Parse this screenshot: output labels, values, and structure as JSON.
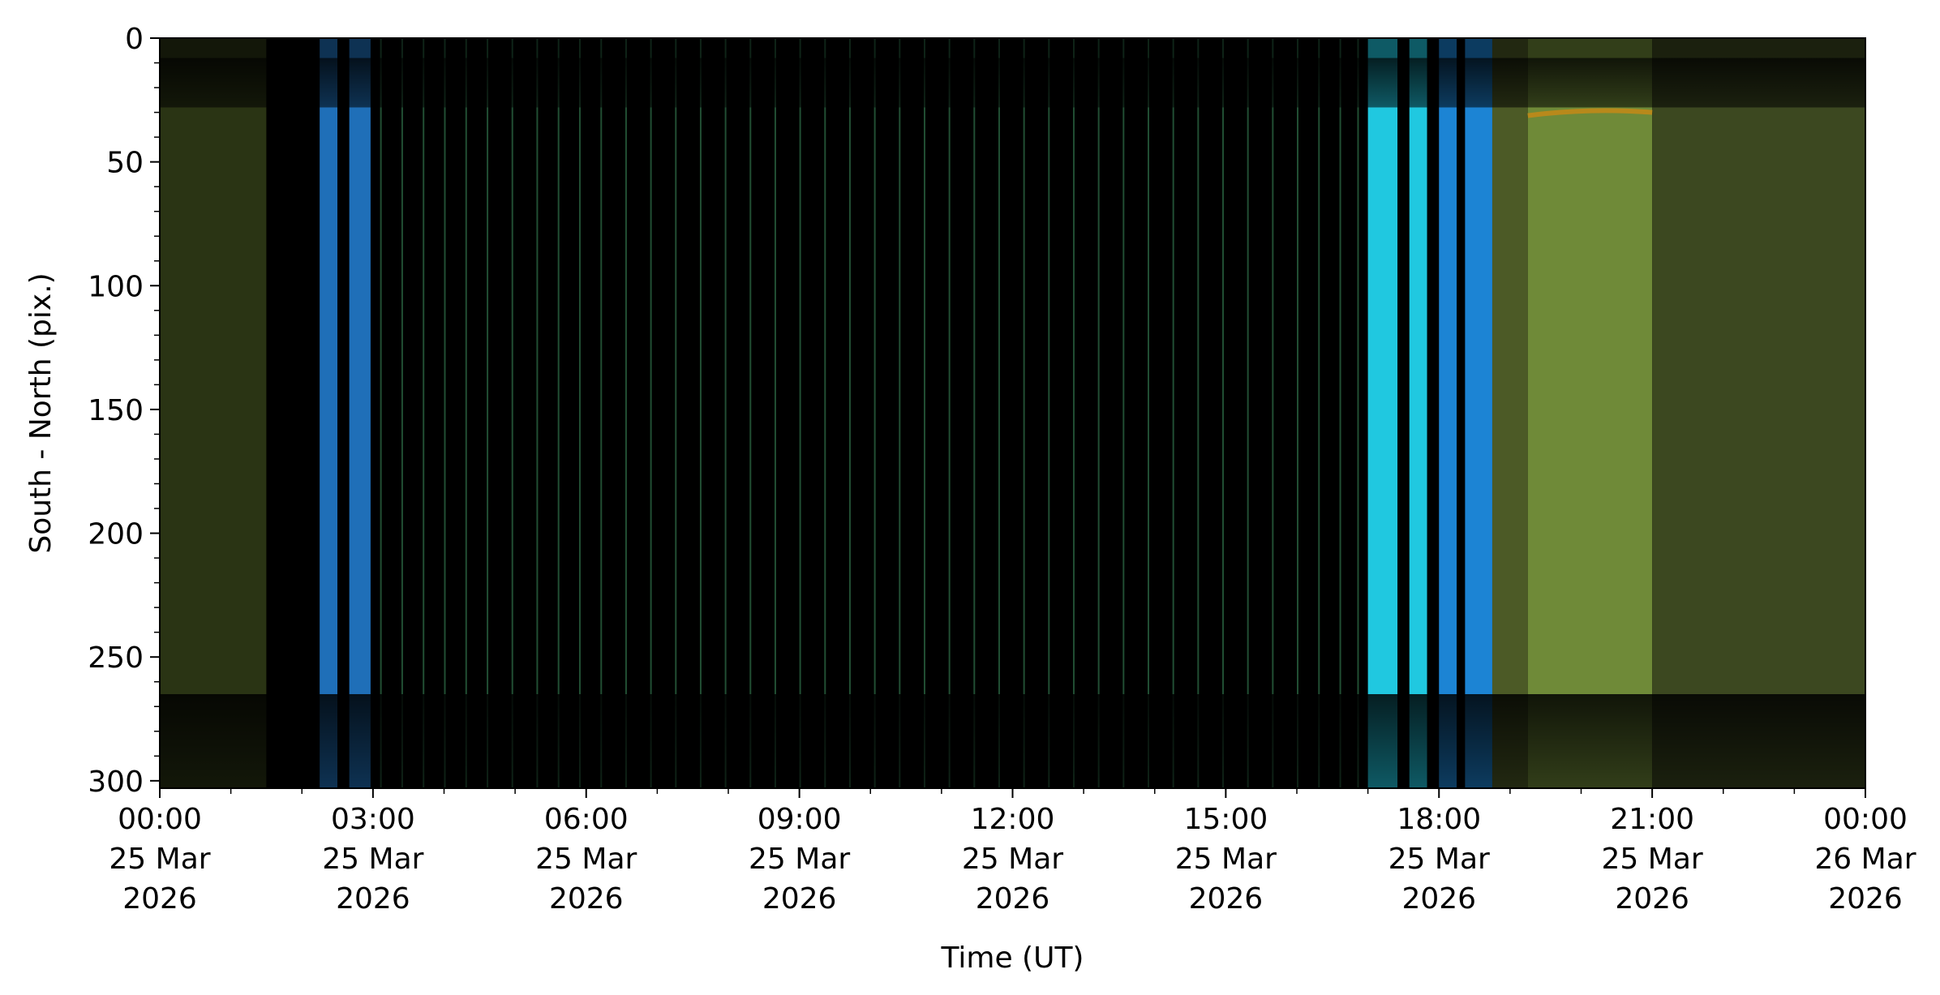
{
  "chart_data": {
    "type": "heatmap",
    "title": "",
    "xlabel": "Time (UT)",
    "ylabel": "South - North (pix.)",
    "x_range": [
      "2026-03-25T00:00",
      "2026-03-26T00:00"
    ],
    "ylim": [
      303,
      0
    ],
    "y_inverted": true,
    "grid": false,
    "legend": "none",
    "x_ticks": [
      {
        "t": "2026-03-25T00:00",
        "lines": [
          "00:00",
          "25 Mar",
          "2026"
        ]
      },
      {
        "t": "2026-03-25T03:00",
        "lines": [
          "03:00",
          "25 Mar",
          "2026"
        ]
      },
      {
        "t": "2026-03-25T06:00",
        "lines": [
          "06:00",
          "25 Mar",
          "2026"
        ]
      },
      {
        "t": "2026-03-25T09:00",
        "lines": [
          "09:00",
          "25 Mar",
          "2026"
        ]
      },
      {
        "t": "2026-03-25T12:00",
        "lines": [
          "12:00",
          "25 Mar",
          "2026"
        ]
      },
      {
        "t": "2026-03-25T15:00",
        "lines": [
          "15:00",
          "25 Mar",
          "2026"
        ]
      },
      {
        "t": "2026-03-25T18:00",
        "lines": [
          "18:00",
          "25 Mar",
          "2026"
        ]
      },
      {
        "t": "2026-03-25T21:00",
        "lines": [
          "21:00",
          "25 Mar",
          "2026"
        ]
      },
      {
        "t": "2026-03-26T00:00",
        "lines": [
          "00:00",
          "26 Mar",
          "2026"
        ]
      }
    ],
    "y_ticks": [
      0,
      50,
      100,
      150,
      200,
      250,
      300
    ],
    "y_minor_step": 10,
    "x_minor_step_hours": 1,
    "colors": {
      "night": "#000000",
      "twilight_green_dark": "#2a3414",
      "twilight_green": "#3d4a20",
      "dawn_blue": "#1f6fb8",
      "dusk_cyan": "#20c8e0",
      "dusk_blue": "#1c84d4",
      "evening_olive": "#6f8a38",
      "evening_olive_dim": "#4c5a26",
      "evening_olive_faint": "#3c4820",
      "stripe_green": "#2f6f48",
      "border_band": "#16160a",
      "aurora_orange": "#c08818"
    },
    "bands": [
      {
        "start": "2026-03-25T00:00",
        "end": "2026-03-25T01:30",
        "color_key": "twilight_green_dark"
      },
      {
        "start": "2026-03-25T01:30",
        "end": "2026-03-25T02:15",
        "color_key": "night"
      },
      {
        "start": "2026-03-25T02:15",
        "end": "2026-03-25T02:30",
        "color_key": "dawn_blue"
      },
      {
        "start": "2026-03-25T02:30",
        "end": "2026-03-25T02:40",
        "color_key": "night"
      },
      {
        "start": "2026-03-25T02:40",
        "end": "2026-03-25T02:58",
        "color_key": "dawn_blue"
      },
      {
        "start": "2026-03-25T02:58",
        "end": "2026-03-25T17:00",
        "color_key": "night"
      },
      {
        "start": "2026-03-25T17:00",
        "end": "2026-03-25T17:25",
        "color_key": "dusk_cyan"
      },
      {
        "start": "2026-03-25T17:25",
        "end": "2026-03-25T17:35",
        "color_key": "night"
      },
      {
        "start": "2026-03-25T17:35",
        "end": "2026-03-25T17:50",
        "color_key": "dusk_cyan"
      },
      {
        "start": "2026-03-25T17:50",
        "end": "2026-03-25T18:00",
        "color_key": "night"
      },
      {
        "start": "2026-03-25T18:00",
        "end": "2026-03-25T18:15",
        "color_key": "dusk_blue"
      },
      {
        "start": "2026-03-25T18:15",
        "end": "2026-03-25T18:22",
        "color_key": "night"
      },
      {
        "start": "2026-03-25T18:22",
        "end": "2026-03-25T18:45",
        "color_key": "dusk_blue"
      },
      {
        "start": "2026-03-25T18:45",
        "end": "2026-03-25T19:15",
        "color_key": "evening_olive_dim"
      },
      {
        "start": "2026-03-25T19:15",
        "end": "2026-03-25T21:00",
        "color_key": "evening_olive"
      },
      {
        "start": "2026-03-25T21:00",
        "end": "2026-03-26T00:00",
        "color_key": "evening_olive_faint"
      }
    ],
    "stripes_hours": [
      3.1,
      3.4,
      3.7,
      4.0,
      4.3,
      4.6,
      4.95,
      5.3,
      5.6,
      5.9,
      6.2,
      6.55,
      6.9,
      7.25,
      7.6,
      7.95,
      8.3,
      8.65,
      9.0,
      9.35,
      9.7,
      10.05,
      10.4,
      10.75,
      11.1,
      11.45,
      11.8,
      12.15,
      12.5,
      12.85,
      13.2,
      13.55,
      13.9,
      14.25,
      14.6,
      14.95,
      15.3,
      15.65,
      16.0,
      16.3,
      16.6,
      16.85
    ],
    "edge_bands_rows": [
      [
        8,
        28
      ],
      [
        265,
        303
      ]
    ],
    "aurora_arc": {
      "start": "2026-03-25T19:15",
      "end": "2026-03-25T21:00",
      "y": 30
    }
  }
}
